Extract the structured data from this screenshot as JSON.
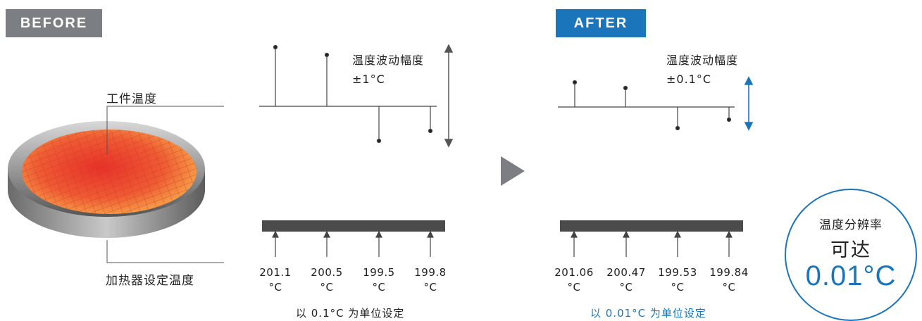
{
  "before": {
    "tag": "BEFORE",
    "workpiece_label": "工件温度",
    "heater_label": "加热器设定温度",
    "fluctuation_title": "温度波动幅度",
    "fluctuation_range": "±1°C",
    "setpoints": [
      {
        "value": "201.1",
        "unit": "°C"
      },
      {
        "value": "200.5",
        "unit": "°C"
      },
      {
        "value": "199.5",
        "unit": "°C"
      },
      {
        "value": "199.8",
        "unit": "°C"
      }
    ],
    "unit_note": "以 0.1°C 为单位设定"
  },
  "after": {
    "tag": "AFTER",
    "fluctuation_title": "温度波动幅度",
    "fluctuation_range": "±0.1°C",
    "setpoints": [
      {
        "value": "201.06",
        "unit": "°C"
      },
      {
        "value": "200.47",
        "unit": "°C"
      },
      {
        "value": "199.53",
        "unit": "°C"
      },
      {
        "value": "199.84",
        "unit": "°C"
      }
    ],
    "unit_note": "以 0.01°C 为单位设定"
  },
  "resolution_badge": {
    "line1": "温度分辨率",
    "line2": "可达",
    "value": "0.01°C"
  },
  "colors": {
    "accent_blue": "#1a75bb",
    "before_gray": "#7b7f83",
    "heater_bar": "#4b4b4b",
    "wafer_orange": "#e8552d"
  },
  "icons": {
    "transition_arrow": "play-triangle-icon",
    "range_arrow": "double-headed-vertical-arrow-icon"
  }
}
